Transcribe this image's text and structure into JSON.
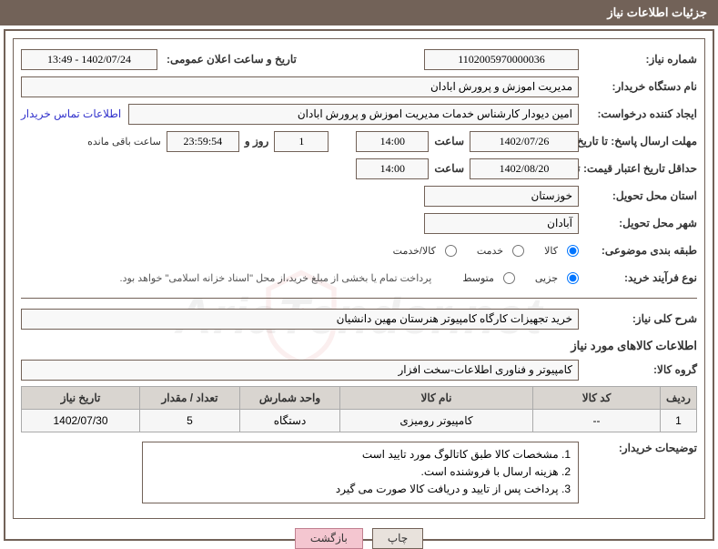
{
  "header": {
    "title": "جزئیات اطلاعات نیاز"
  },
  "labels": {
    "need_no": "شماره نیاز:",
    "announce_dt": "تاریخ و ساعت اعلان عمومی:",
    "buyer_org": "نام دستگاه خریدار:",
    "requester": "ایجاد کننده درخواست:",
    "contact_link": "اطلاعات تماس خریدار",
    "reply_deadline": "مهلت ارسال پاسخ: تا تاریخ:",
    "hour": "ساعت",
    "day_and": "روز و",
    "remaining": "ساعت باقی مانده",
    "quote_validity": "حداقل تاریخ اعتبار قیمت: تا تاریخ:",
    "delivery_province": "استان محل تحویل:",
    "delivery_city": "شهر محل تحویل:",
    "subject_class": "طبقه بندی موضوعی:",
    "r_goods": "کالا",
    "r_service": "خدمت",
    "r_both": "کالا/خدمت",
    "purchase_type": "نوع فرآیند خرید:",
    "pt_small": "جزیی",
    "pt_medium": "متوسط",
    "payment_note": "پرداخت تمام یا بخشی از مبلغ خرید،از محل \"اسناد خزانه اسلامی\" خواهد بود.",
    "need_desc": "شرح کلی نیاز:",
    "items_section": "اطلاعات کالاهای مورد نیاز",
    "goods_group": "گروه کالا:",
    "buyer_notes": "توضیحات خریدار:"
  },
  "values": {
    "need_no": "1102005970000036",
    "announce_dt": "1402/07/24 - 13:49",
    "buyer_org": "مدیریت اموزش و پرورش ابادان",
    "requester": "امین دیودار کارشناس خدمات مدیریت اموزش و پرورش ابادان",
    "reply_date": "1402/07/26",
    "reply_time": "14:00",
    "remain_days": "1",
    "remain_time": "23:59:54",
    "validity_date": "1402/08/20",
    "validity_time": "14:00",
    "province": "خوزستان",
    "city": "آبادان",
    "need_desc": "خرید تجهیزات کارگاه کامپیوتر هنرستان مهین دانشیان",
    "goods_group": "کامپیوتر و فناوری اطلاعات-سخت افزار"
  },
  "radios": {
    "subject_checked": "goods",
    "purchase_checked": "small"
  },
  "table": {
    "headers": [
      "ردیف",
      "کد کالا",
      "نام کالا",
      "واحد شمارش",
      "تعداد / مقدار",
      "تاریخ نیاز"
    ],
    "rows": [
      [
        "1",
        "--",
        "کامپیوتر رومیزی",
        "دستگاه",
        "5",
        "1402/07/30"
      ]
    ],
    "col_widths": [
      "40px",
      "140px",
      "auto",
      "110px",
      "110px",
      "130px"
    ]
  },
  "notes": [
    "1. مشخصات کالا طبق کاتالوگ مورد تایید است",
    "2. هزینه ارسال با فروشنده است.",
    "3. پرداخت پس از تایید و دریافت کالا صورت می گیرد"
  ],
  "buttons": {
    "print": "چاپ",
    "back": "بازگشت"
  },
  "watermark_text": "AriaTender.net",
  "colors": {
    "accent": "#726258",
    "header_text": "#ffffff",
    "th_bg": "#d9d5d0",
    "link": "#3333cc",
    "btn_bg": "#e8e2dc",
    "btn_back": "#f4c6d0"
  }
}
